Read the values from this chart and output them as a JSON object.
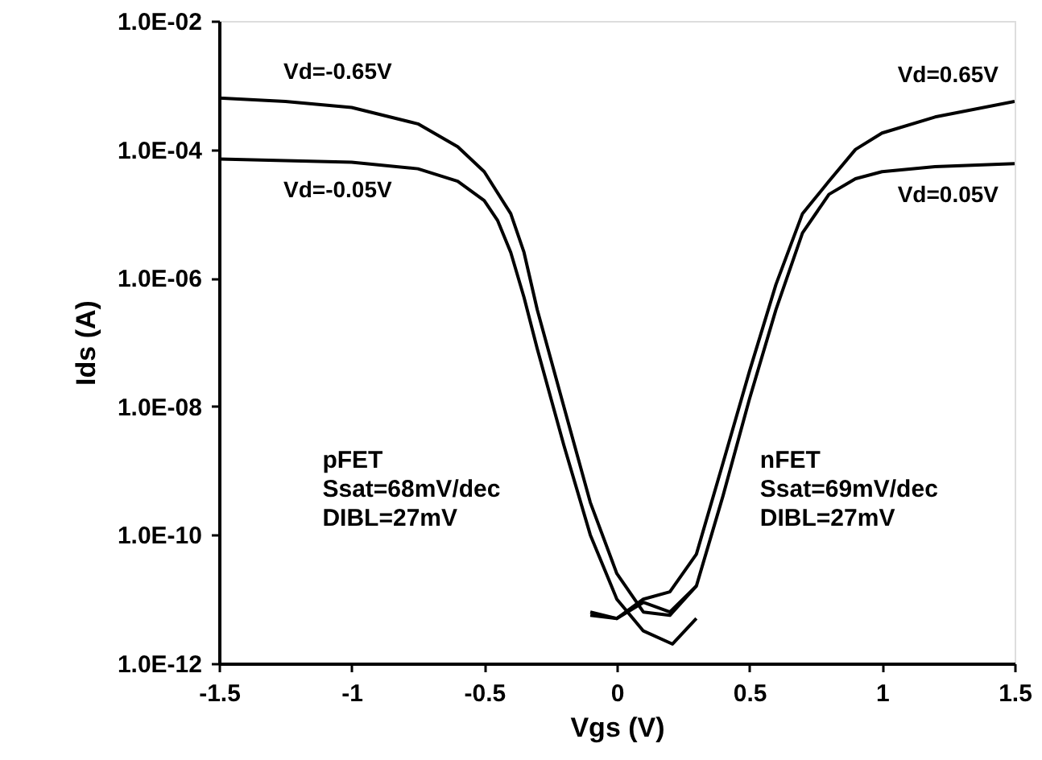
{
  "chart_data": {
    "type": "line",
    "xlabel": "Vgs (V)",
    "ylabel": "Ids (A)",
    "log": "y",
    "grid": false,
    "marker": "none",
    "line_style": "solid",
    "xlim": [
      -1.5,
      1.5
    ],
    "xticks": [
      -1.5,
      -1,
      -0.5,
      0,
      0.5,
      1,
      1.5
    ],
    "ylim": [
      1e-12,
      0.01
    ],
    "yticks": [
      {
        "value": 1e-12,
        "label": "1.0E-12"
      },
      {
        "value": 1e-10,
        "label": "1.0E-10"
      },
      {
        "value": 1e-08,
        "label": "1.0E-08"
      },
      {
        "value": 1e-06,
        "label": "1.0E-06"
      },
      {
        "value": 0.0001,
        "label": "1.0E-04"
      },
      {
        "value": 0.01,
        "label": "1.0E-02"
      }
    ],
    "series": [
      {
        "name": "Vd=-0.65V",
        "color": "#000000",
        "x": [
          -1.5,
          -1.25,
          -1,
          -0.75,
          -0.6,
          -0.5,
          -0.4,
          -0.35,
          -0.3,
          -0.2,
          -0.1,
          0,
          0.1,
          0.2,
          0.3
        ],
        "values": [
          0.00063,
          0.00056,
          0.00045,
          0.00025,
          0.00011,
          4.5e-05,
          1e-05,
          2.5e-06,
          3.2e-07,
          1e-08,
          3.2e-10,
          2.5e-11,
          6.3e-12,
          5.6e-12,
          1.6e-11
        ]
      },
      {
        "name": "Vd=-0.05V",
        "color": "#000000",
        "x": [
          -1.5,
          -1,
          -0.75,
          -0.6,
          -0.5,
          -0.45,
          -0.4,
          -0.35,
          -0.3,
          -0.2,
          -0.1,
          0,
          0.1,
          0.21,
          0.3
        ],
        "values": [
          7.1e-05,
          6.3e-05,
          5e-05,
          3.2e-05,
          1.6e-05,
          7.9e-06,
          2.5e-06,
          5e-07,
          7.9e-08,
          2.5e-09,
          1e-10,
          1e-11,
          3.2e-12,
          2e-12,
          5e-12
        ]
      },
      {
        "name": "Vd=0.65V",
        "color": "#000000",
        "x": [
          -0.1,
          0,
          0.1,
          0.2,
          0.3,
          0.4,
          0.5,
          0.6,
          0.7,
          0.8,
          0.9,
          1.0,
          1.2,
          1.5
        ],
        "values": [
          6.3e-12,
          5e-12,
          1e-11,
          1.3e-11,
          5e-11,
          1.3e-09,
          3.5e-08,
          7.9e-07,
          1e-05,
          3.2e-05,
          0.0001,
          0.00018,
          0.00032,
          0.00056
        ]
      },
      {
        "name": "Vd=0.05V",
        "color": "#000000",
        "x": [
          -0.1,
          0,
          0.1,
          0.2,
          0.3,
          0.4,
          0.5,
          0.6,
          0.7,
          0.8,
          0.9,
          1.0,
          1.2,
          1.5
        ],
        "values": [
          5.6e-12,
          5e-12,
          8.9e-12,
          6.3e-12,
          1.6e-11,
          4e-10,
          1.3e-08,
          3.2e-07,
          5e-06,
          2e-05,
          3.5e-05,
          4.5e-05,
          5.4e-05,
          6e-05
        ]
      }
    ],
    "annotations": [
      "pFET\nSsat=68mV/dec\nDIBL=27mV",
      "nFET\nSsat=69mV/dec\nDIBL=27mV"
    ]
  }
}
